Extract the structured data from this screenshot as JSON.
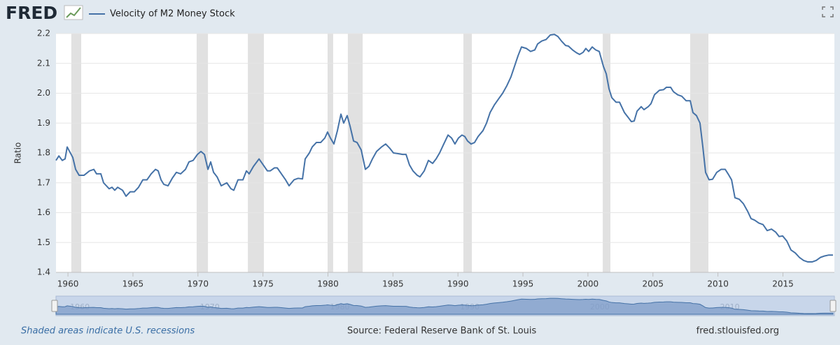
{
  "chart_data": {
    "type": "line",
    "logo": "FRED",
    "y_label": "Ratio",
    "note": "Shaded areas indicate U.S. recessions",
    "source": "Source: Federal Reserve Bank of St. Louis",
    "website": "fred.stlouisfed.org",
    "grid": true,
    "xlim": [
      1959.08,
      2018.96
    ],
    "ylim": [
      1.4,
      2.2
    ],
    "xticks": [
      1960,
      1965,
      1970,
      1975,
      1980,
      1985,
      1990,
      1995,
      2000,
      2005,
      2010,
      2015
    ],
    "yticks": [
      2.2,
      2.1,
      {
        "value": 2,
        "label": "2.0"
      },
      1.9,
      1.8,
      1.7,
      1.6,
      1.5,
      1.4
    ],
    "navigator_xticks": [
      1960,
      1970,
      1980,
      1990,
      2000,
      2010
    ],
    "recession_color": "#e1e1e1",
    "recessions": [
      [
        1960.26,
        1961.02
      ],
      [
        1969.9,
        1970.77
      ],
      [
        1973.84,
        1975.07
      ],
      [
        1979.97,
        1980.4
      ],
      [
        1981.53,
        1982.67
      ],
      [
        1990.42,
        1991.07
      ],
      [
        2001.14,
        2001.73
      ],
      [
        2007.87,
        2009.27
      ]
    ],
    "x": [
      1959.08,
      1959.3,
      1959.56,
      1959.78,
      1959.94,
      1960.37,
      1960.59,
      1960.86,
      1961.23,
      1961.66,
      1961.99,
      1962.2,
      1962.53,
      1962.74,
      1963.17,
      1963.39,
      1963.6,
      1963.82,
      1964.2,
      1964.47,
      1964.79,
      1965.11,
      1965.43,
      1965.76,
      1966.08,
      1966.4,
      1966.73,
      1966.94,
      1967.16,
      1967.37,
      1967.7,
      1968.02,
      1968.34,
      1968.67,
      1969.04,
      1969.31,
      1969.63,
      1969.96,
      1970.23,
      1970.5,
      1970.77,
      1970.98,
      1971.2,
      1971.47,
      1971.79,
      1972.22,
      1972.54,
      1972.76,
      1973.08,
      1973.46,
      1973.73,
      1973.94,
      1974.27,
      1974.7,
      1975.02,
      1975.34,
      1975.56,
      1975.88,
      1976.1,
      1976.42,
      1976.74,
      1977.01,
      1977.39,
      1977.71,
      1978.04,
      1978.25,
      1978.57,
      1978.79,
      1979.11,
      1979.44,
      1979.76,
      1979.97,
      1980.19,
      1980.46,
      1980.73,
      1981.0,
      1981.21,
      1981.48,
      1981.7,
      1981.97,
      1982.24,
      1982.56,
      1982.88,
      1983.15,
      1983.42,
      1983.74,
      1984.12,
      1984.44,
      1984.77,
      1985.04,
      1985.36,
      1985.74,
      1986.01,
      1986.27,
      1986.54,
      1986.87,
      1987.08,
      1987.41,
      1987.73,
      1988.05,
      1988.32,
      1988.59,
      1988.91,
      1989.24,
      1989.51,
      1989.77,
      1990.04,
      1990.31,
      1990.53,
      1990.74,
      1991.01,
      1991.28,
      1991.55,
      1991.93,
      1992.2,
      1992.47,
      1992.79,
      1993.11,
      1993.44,
      1993.76,
      1994.08,
      1994.35,
      1994.62,
      1994.89,
      1995.27,
      1995.59,
      1995.91,
      1996.13,
      1996.45,
      1996.78,
      1997.1,
      1997.42,
      1997.69,
      1997.96,
      1998.28,
      1998.5,
      1998.82,
      1999.14,
      1999.36,
      1999.63,
      1999.84,
      2000.06,
      2000.33,
      2000.6,
      2000.87,
      2001.19,
      2001.41,
      2001.62,
      2001.84,
      2002.16,
      2002.43,
      2002.81,
      2003.08,
      2003.34,
      2003.56,
      2003.78,
      2004.1,
      2004.31,
      2004.64,
      2004.85,
      2005.12,
      2005.5,
      2005.82,
      2006.04,
      2006.36,
      2006.58,
      2006.9,
      2007.22,
      2007.55,
      2007.87,
      2008.08,
      2008.35,
      2008.62,
      2008.84,
      2009.05,
      2009.32,
      2009.59,
      2009.91,
      2010.24,
      2010.56,
      2010.78,
      2011.05,
      2011.31,
      2011.64,
      2011.96,
      2012.28,
      2012.55,
      2012.82,
      2013.15,
      2013.47,
      2013.79,
      2014.12,
      2014.44,
      2014.71,
      2014.98,
      2015.3,
      2015.62,
      2015.95,
      2016.27,
      2016.59,
      2016.92,
      2017.24,
      2017.56,
      2017.88,
      2018.21,
      2018.53,
      2018.85
    ],
    "series": [
      {
        "name": "Velocity of M2 Money Stock",
        "color": "#4572a7",
        "values": [
          1.775,
          1.79,
          1.775,
          1.78,
          1.82,
          1.785,
          1.745,
          1.725,
          1.725,
          1.74,
          1.745,
          1.73,
          1.73,
          1.7,
          1.68,
          1.685,
          1.675,
          1.685,
          1.675,
          1.655,
          1.67,
          1.67,
          1.685,
          1.71,
          1.71,
          1.73,
          1.745,
          1.74,
          1.71,
          1.695,
          1.69,
          1.715,
          1.735,
          1.73,
          1.745,
          1.77,
          1.775,
          1.795,
          1.805,
          1.795,
          1.745,
          1.77,
          1.735,
          1.72,
          1.69,
          1.7,
          1.68,
          1.675,
          1.71,
          1.71,
          1.74,
          1.73,
          1.755,
          1.78,
          1.76,
          1.74,
          1.74,
          1.75,
          1.75,
          1.73,
          1.71,
          1.69,
          1.71,
          1.715,
          1.713,
          1.78,
          1.8,
          1.82,
          1.835,
          1.835,
          1.85,
          1.87,
          1.85,
          1.83,
          1.875,
          1.93,
          1.9,
          1.925,
          1.89,
          1.84,
          1.835,
          1.81,
          1.745,
          1.755,
          1.78,
          1.805,
          1.82,
          1.83,
          1.815,
          1.8,
          1.798,
          1.795,
          1.795,
          1.76,
          1.74,
          1.725,
          1.72,
          1.74,
          1.775,
          1.765,
          1.78,
          1.8,
          1.83,
          1.86,
          1.85,
          1.83,
          1.85,
          1.86,
          1.855,
          1.84,
          1.83,
          1.835,
          1.855,
          1.875,
          1.9,
          1.935,
          1.96,
          1.98,
          2.0,
          2.025,
          2.055,
          2.09,
          2.125,
          2.155,
          2.15,
          2.14,
          2.145,
          2.165,
          2.175,
          2.18,
          2.195,
          2.197,
          2.19,
          2.175,
          2.16,
          2.158,
          2.145,
          2.135,
          2.13,
          2.137,
          2.15,
          2.14,
          2.155,
          2.145,
          2.14,
          2.09,
          2.065,
          2.015,
          1.985,
          1.97,
          1.97,
          1.935,
          1.92,
          1.905,
          1.907,
          1.94,
          1.955,
          1.945,
          1.955,
          1.965,
          1.995,
          2.01,
          2.012,
          2.02,
          2.02,
          2.005,
          1.995,
          1.99,
          1.975,
          1.975,
          1.935,
          1.925,
          1.9,
          1.82,
          1.735,
          1.71,
          1.712,
          1.735,
          1.745,
          1.745,
          1.73,
          1.71,
          1.65,
          1.645,
          1.63,
          1.605,
          1.58,
          1.575,
          1.565,
          1.56,
          1.54,
          1.545,
          1.535,
          1.52,
          1.522,
          1.505,
          1.475,
          1.465,
          1.45,
          1.44,
          1.435,
          1.435,
          1.44,
          1.45,
          1.455,
          1.458,
          1.458
        ]
      }
    ]
  }
}
